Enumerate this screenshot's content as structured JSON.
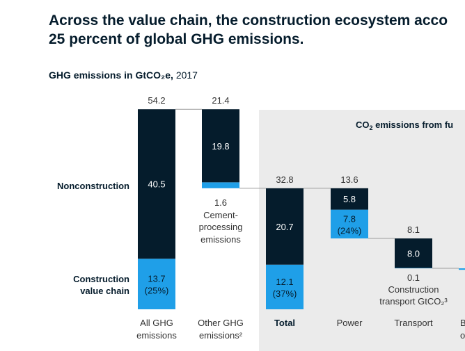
{
  "chart_data": {
    "type": "bar",
    "variant": "waterfall",
    "title_lines": [
      "Across the value chain, the construction ecosystem acco",
      "25 percent of global GHG emissions."
    ],
    "subtitle_measure": "GHG emissions in GtCO₂e,",
    "subtitle_year": " 2017",
    "panel_title_pre": "CO",
    "panel_title_sub": "2",
    "panel_title_post": " emissions from fu",
    "row_labels": [
      "Nonconstruction",
      "Construction",
      "value chain"
    ],
    "categories": [
      {
        "label": [
          "All GHG",
          "emissions"
        ],
        "bold": false
      },
      {
        "label": [
          "Other GHG",
          "emissions²"
        ],
        "bold": false
      },
      {
        "label": [
          "Total"
        ],
        "bold": true
      },
      {
        "label": [
          "Power"
        ],
        "bold": false
      },
      {
        "label": [
          "Transport"
        ],
        "bold": false
      },
      {
        "label": [
          "B",
          "op"
        ],
        "bold": false
      }
    ],
    "totals": [
      "54.2",
      "21.4",
      "32.8",
      "13.6",
      "8.1",
      ""
    ],
    "series": [
      {
        "name": "Nonconstruction",
        "values": [
          40.5,
          19.8,
          20.7,
          5.8,
          8.0,
          0
        ],
        "labels": [
          "40.5",
          "19.8",
          "20.7",
          "5.8",
          "8.0",
          ""
        ],
        "color": "#051c2c"
      },
      {
        "name": "Construction value chain",
        "values": [
          13.7,
          1.6,
          12.1,
          7.8,
          0.1,
          0.4
        ],
        "labels": [
          "13.7 (25%)",
          "",
          "12.1 (37%)",
          "7.8 (24%)",
          "",
          ""
        ],
        "color": "#1f9fe8"
      }
    ],
    "annotations": {
      "other_construction": [
        "1.6",
        "Cement-",
        "processing",
        "emissions"
      ],
      "transport_construction": [
        "0.1",
        "Construction",
        "transport GtCO₂³"
      ]
    },
    "colors": {
      "nonconstruction": "#051c2c",
      "construction": "#1f9fe8",
      "panel": "#ebebeb",
      "connector": "#9e9e9e"
    }
  }
}
